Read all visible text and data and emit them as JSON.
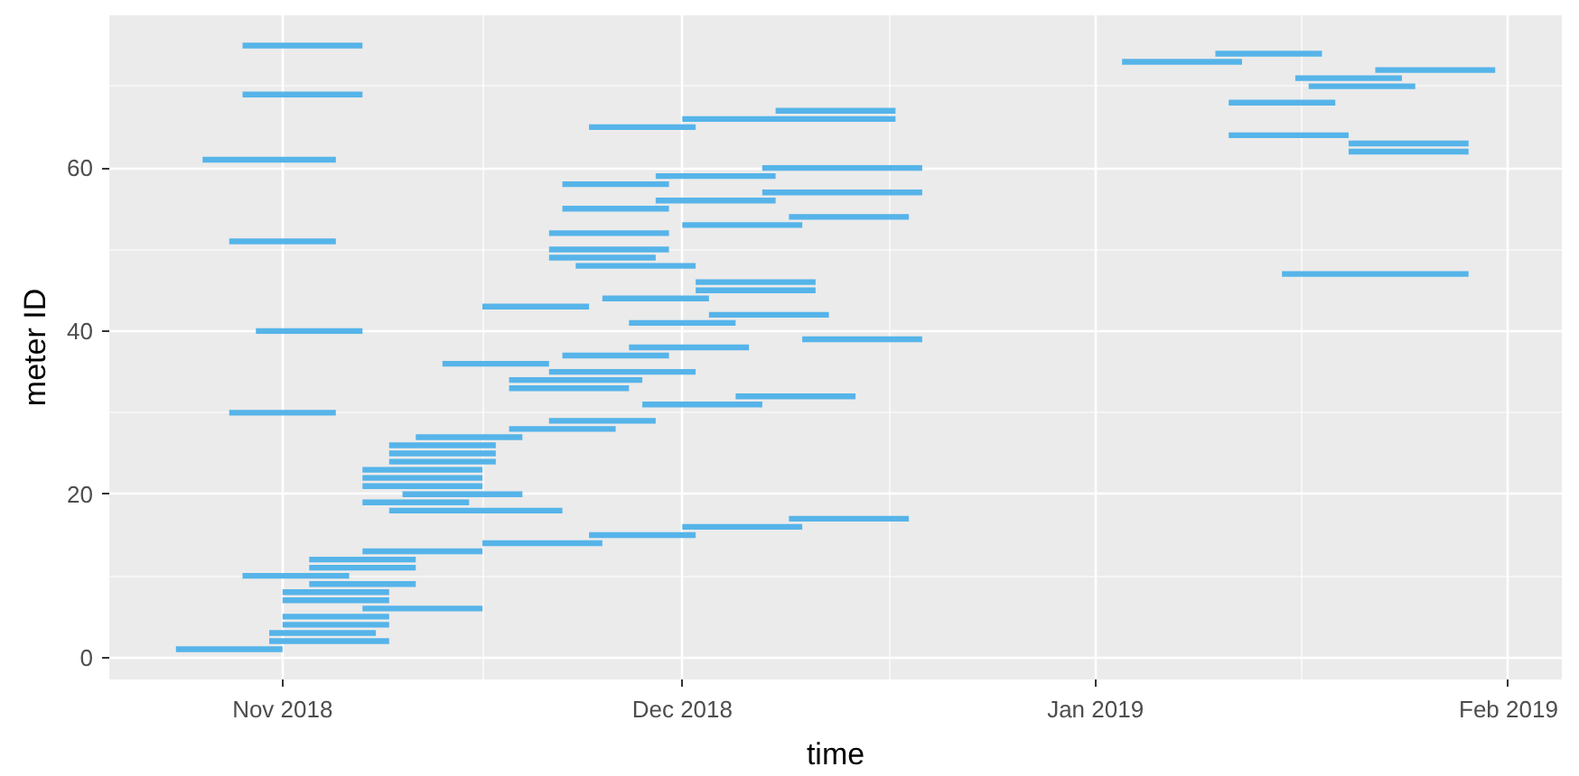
{
  "chart_data": {
    "type": "line",
    "xlabel": "time",
    "ylabel": "meter ID",
    "xlim": [
      "2018-10-19",
      "2019-02-05"
    ],
    "ylim": [
      -2.7,
      78.7
    ],
    "xticks": [
      {
        "value": "2018-11-01",
        "label": "Nov 2018"
      },
      {
        "value": "2018-12-01",
        "label": "Dec 2018"
      },
      {
        "value": "2019-01-01",
        "label": "Jan 2019"
      },
      {
        "value": "2019-02-01",
        "label": "Feb 2019"
      }
    ],
    "yticks": [
      0,
      20,
      40,
      60
    ],
    "grid": true,
    "series": [
      {
        "color": "#56b4e9",
        "x": [
          "2018-10-24",
          "2018-11-01"
        ],
        "values": [
          1,
          1
        ]
      },
      {
        "color": "#56b4e9",
        "x": [
          "2018-10-31",
          "2018-11-09"
        ],
        "values": [
          2,
          2
        ]
      },
      {
        "color": "#56b4e9",
        "x": [
          "2018-10-31",
          "2018-11-08"
        ],
        "values": [
          3,
          3
        ]
      },
      {
        "color": "#56b4e9",
        "x": [
          "2018-11-01",
          "2018-11-09"
        ],
        "values": [
          4,
          4
        ]
      },
      {
        "color": "#56b4e9",
        "x": [
          "2018-11-01",
          "2018-11-09"
        ],
        "values": [
          5,
          5
        ]
      },
      {
        "color": "#56b4e9",
        "x": [
          "2018-11-07",
          "2018-11-16"
        ],
        "values": [
          6,
          6
        ]
      },
      {
        "color": "#56b4e9",
        "x": [
          "2018-11-01",
          "2018-11-09"
        ],
        "values": [
          7,
          7
        ]
      },
      {
        "color": "#56b4e9",
        "x": [
          "2018-11-01",
          "2018-11-09"
        ],
        "values": [
          8,
          8
        ]
      },
      {
        "color": "#56b4e9",
        "x": [
          "2018-11-03",
          "2018-11-11"
        ],
        "values": [
          9,
          9
        ]
      },
      {
        "color": "#56b4e9",
        "x": [
          "2018-10-29",
          "2018-11-06"
        ],
        "values": [
          10,
          10
        ]
      },
      {
        "color": "#56b4e9",
        "x": [
          "2018-11-03",
          "2018-11-11"
        ],
        "values": [
          11,
          11
        ]
      },
      {
        "color": "#56b4e9",
        "x": [
          "2018-11-03",
          "2018-11-11"
        ],
        "values": [
          12,
          12
        ]
      },
      {
        "color": "#56b4e9",
        "x": [
          "2018-11-07",
          "2018-11-16"
        ],
        "values": [
          13,
          13
        ]
      },
      {
        "color": "#56b4e9",
        "x": [
          "2018-11-16",
          "2018-11-25"
        ],
        "values": [
          14,
          14
        ]
      },
      {
        "color": "#56b4e9",
        "x": [
          "2018-11-24",
          "2018-12-02"
        ],
        "values": [
          15,
          15
        ]
      },
      {
        "color": "#56b4e9",
        "x": [
          "2018-12-01",
          "2018-12-10"
        ],
        "values": [
          16,
          16
        ]
      },
      {
        "color": "#56b4e9",
        "x": [
          "2018-12-09",
          "2018-12-18"
        ],
        "values": [
          17,
          17
        ]
      },
      {
        "color": "#56b4e9",
        "x": [
          "2018-11-09",
          "2018-11-22"
        ],
        "values": [
          18,
          18
        ]
      },
      {
        "color": "#56b4e9",
        "x": [
          "2018-11-07",
          "2018-11-15"
        ],
        "values": [
          19,
          19
        ]
      },
      {
        "color": "#56b4e9",
        "x": [
          "2018-11-10",
          "2018-11-19"
        ],
        "values": [
          20,
          20
        ]
      },
      {
        "color": "#56b4e9",
        "x": [
          "2018-11-07",
          "2018-11-16"
        ],
        "values": [
          21,
          21
        ]
      },
      {
        "color": "#56b4e9",
        "x": [
          "2018-11-07",
          "2018-11-16"
        ],
        "values": [
          22,
          22
        ]
      },
      {
        "color": "#56b4e9",
        "x": [
          "2018-11-07",
          "2018-11-16"
        ],
        "values": [
          23,
          23
        ]
      },
      {
        "color": "#56b4e9",
        "x": [
          "2018-11-09",
          "2018-11-17"
        ],
        "values": [
          24,
          24
        ]
      },
      {
        "color": "#56b4e9",
        "x": [
          "2018-11-09",
          "2018-11-17"
        ],
        "values": [
          25,
          25
        ]
      },
      {
        "color": "#56b4e9",
        "x": [
          "2018-11-09",
          "2018-11-17"
        ],
        "values": [
          26,
          26
        ]
      },
      {
        "color": "#56b4e9",
        "x": [
          "2018-11-11",
          "2018-11-19"
        ],
        "values": [
          27,
          27
        ]
      },
      {
        "color": "#56b4e9",
        "x": [
          "2018-11-18",
          "2018-11-26"
        ],
        "values": [
          28,
          28
        ]
      },
      {
        "color": "#56b4e9",
        "x": [
          "2018-11-21",
          "2018-11-29"
        ],
        "values": [
          29,
          29
        ]
      },
      {
        "color": "#56b4e9",
        "x": [
          "2018-10-28",
          "2018-11-05"
        ],
        "values": [
          30,
          30
        ]
      },
      {
        "color": "#56b4e9",
        "x": [
          "2018-11-28",
          "2018-12-07"
        ],
        "values": [
          31,
          31
        ]
      },
      {
        "color": "#56b4e9",
        "x": [
          "2018-12-05",
          "2018-12-14"
        ],
        "values": [
          32,
          32
        ]
      },
      {
        "color": "#56b4e9",
        "x": [
          "2018-11-18",
          "2018-11-27"
        ],
        "values": [
          33,
          33
        ]
      },
      {
        "color": "#56b4e9",
        "x": [
          "2018-11-18",
          "2018-11-28"
        ],
        "values": [
          34,
          34
        ]
      },
      {
        "color": "#56b4e9",
        "x": [
          "2018-11-21",
          "2018-12-02"
        ],
        "values": [
          35,
          35
        ]
      },
      {
        "color": "#56b4e9",
        "x": [
          "2018-11-13",
          "2018-11-21"
        ],
        "values": [
          36,
          36
        ]
      },
      {
        "color": "#56b4e9",
        "x": [
          "2018-11-22",
          "2018-11-30"
        ],
        "values": [
          37,
          37
        ]
      },
      {
        "color": "#56b4e9",
        "x": [
          "2018-11-27",
          "2018-12-06"
        ],
        "values": [
          38,
          38
        ]
      },
      {
        "color": "#56b4e9",
        "x": [
          "2018-12-10",
          "2018-12-19"
        ],
        "values": [
          39,
          39
        ]
      },
      {
        "color": "#56b4e9",
        "x": [
          "2018-10-30",
          "2018-11-07"
        ],
        "values": [
          40,
          40
        ]
      },
      {
        "color": "#56b4e9",
        "x": [
          "2018-11-27",
          "2018-12-05"
        ],
        "values": [
          41,
          41
        ]
      },
      {
        "color": "#56b4e9",
        "x": [
          "2018-12-03",
          "2018-12-12"
        ],
        "values": [
          42,
          42
        ]
      },
      {
        "color": "#56b4e9",
        "x": [
          "2018-11-16",
          "2018-11-24"
        ],
        "values": [
          43,
          43
        ]
      },
      {
        "color": "#56b4e9",
        "x": [
          "2018-11-25",
          "2018-12-03"
        ],
        "values": [
          44,
          44
        ]
      },
      {
        "color": "#56b4e9",
        "x": [
          "2018-12-02",
          "2018-12-11"
        ],
        "values": [
          45,
          45
        ]
      },
      {
        "color": "#56b4e9",
        "x": [
          "2018-12-02",
          "2018-12-11"
        ],
        "values": [
          46,
          46
        ]
      },
      {
        "color": "#56b4e9",
        "x": [
          "2019-01-15",
          "2019-01-29"
        ],
        "values": [
          47,
          47
        ]
      },
      {
        "color": "#56b4e9",
        "x": [
          "2018-11-23",
          "2018-12-02"
        ],
        "values": [
          48,
          48
        ]
      },
      {
        "color": "#56b4e9",
        "x": [
          "2018-11-21",
          "2018-11-29"
        ],
        "values": [
          49,
          49
        ]
      },
      {
        "color": "#56b4e9",
        "x": [
          "2018-11-21",
          "2018-11-30"
        ],
        "values": [
          50,
          50
        ]
      },
      {
        "color": "#56b4e9",
        "x": [
          "2018-10-28",
          "2018-11-05"
        ],
        "values": [
          51,
          51
        ]
      },
      {
        "color": "#56b4e9",
        "x": [
          "2018-11-21",
          "2018-11-30"
        ],
        "values": [
          52,
          52
        ]
      },
      {
        "color": "#56b4e9",
        "x": [
          "2018-12-01",
          "2018-12-10"
        ],
        "values": [
          53,
          53
        ]
      },
      {
        "color": "#56b4e9",
        "x": [
          "2018-12-09",
          "2018-12-18"
        ],
        "values": [
          54,
          54
        ]
      },
      {
        "color": "#56b4e9",
        "x": [
          "2018-11-22",
          "2018-11-30"
        ],
        "values": [
          55,
          55
        ]
      },
      {
        "color": "#56b4e9",
        "x": [
          "2018-11-29",
          "2018-12-08"
        ],
        "values": [
          56,
          56
        ]
      },
      {
        "color": "#56b4e9",
        "x": [
          "2018-12-07",
          "2018-12-19"
        ],
        "values": [
          57,
          57
        ]
      },
      {
        "color": "#56b4e9",
        "x": [
          "2018-11-22",
          "2018-11-30"
        ],
        "values": [
          58,
          58
        ]
      },
      {
        "color": "#56b4e9",
        "x": [
          "2018-11-29",
          "2018-12-08"
        ],
        "values": [
          59,
          59
        ]
      },
      {
        "color": "#56b4e9",
        "x": [
          "2018-12-07",
          "2018-12-19"
        ],
        "values": [
          60,
          60
        ]
      },
      {
        "color": "#56b4e9",
        "x": [
          "2018-10-26",
          "2018-11-05"
        ],
        "values": [
          61,
          61
        ]
      },
      {
        "color": "#56b4e9",
        "x": [
          "2019-01-20",
          "2019-01-29"
        ],
        "values": [
          62,
          62
        ]
      },
      {
        "color": "#56b4e9",
        "x": [
          "2019-01-20",
          "2019-01-29"
        ],
        "values": [
          63,
          63
        ]
      },
      {
        "color": "#56b4e9",
        "x": [
          "2019-01-11",
          "2019-01-20"
        ],
        "values": [
          64,
          64
        ]
      },
      {
        "color": "#56b4e9",
        "x": [
          "2018-11-24",
          "2018-12-02"
        ],
        "values": [
          65,
          65
        ]
      },
      {
        "color": "#56b4e9",
        "x": [
          "2018-12-01",
          "2018-12-17"
        ],
        "values": [
          66,
          66
        ]
      },
      {
        "color": "#56b4e9",
        "x": [
          "2018-12-08",
          "2018-12-17"
        ],
        "values": [
          67,
          67
        ]
      },
      {
        "color": "#56b4e9",
        "x": [
          "2019-01-11",
          "2019-01-19"
        ],
        "values": [
          68,
          68
        ]
      },
      {
        "color": "#56b4e9",
        "x": [
          "2018-10-29",
          "2018-11-07"
        ],
        "values": [
          69,
          69
        ]
      },
      {
        "color": "#56b4e9",
        "x": [
          "2019-01-17",
          "2019-01-25"
        ],
        "values": [
          70,
          70
        ]
      },
      {
        "color": "#56b4e9",
        "x": [
          "2019-01-16",
          "2019-01-24"
        ],
        "values": [
          71,
          71
        ]
      },
      {
        "color": "#56b4e9",
        "x": [
          "2019-01-22",
          "2019-01-31"
        ],
        "values": [
          72,
          72
        ]
      },
      {
        "color": "#56b4e9",
        "x": [
          "2019-01-03",
          "2019-01-12"
        ],
        "values": [
          73,
          73
        ]
      },
      {
        "color": "#56b4e9",
        "x": [
          "2019-01-10",
          "2019-01-18"
        ],
        "values": [
          74,
          74
        ]
      },
      {
        "color": "#56b4e9",
        "x": [
          "2018-10-29",
          "2018-11-07"
        ],
        "values": [
          75,
          75
        ]
      }
    ]
  }
}
